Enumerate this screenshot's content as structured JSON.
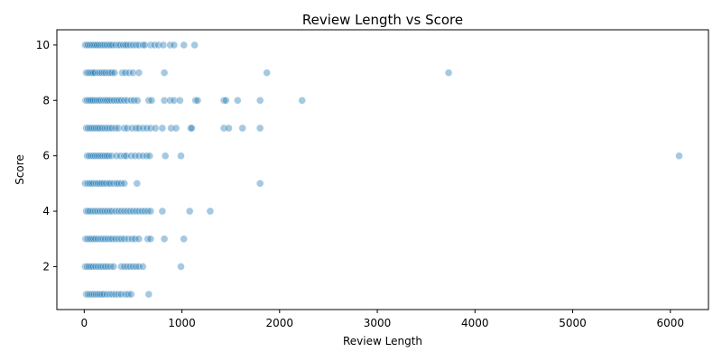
{
  "chart_data": {
    "type": "scatter",
    "title": "Review Length vs Score",
    "xlabel": "Review Length",
    "ylabel": "Score",
    "xlim": [
      -280,
      6390
    ],
    "ylim": [
      0.45,
      10.55
    ],
    "xticks": [
      0,
      1000,
      2000,
      3000,
      4000,
      5000,
      6000
    ],
    "yticks": [
      2,
      4,
      6,
      8,
      10
    ],
    "grid": false,
    "point_color": "#1f77b4",
    "point_alpha": 0.4,
    "series": [
      {
        "points": [
          [
            10,
            10
          ],
          [
            25,
            10
          ],
          [
            40,
            10
          ],
          [
            55,
            10
          ],
          [
            70,
            10
          ],
          [
            85,
            10
          ],
          [
            100,
            10
          ],
          [
            115,
            10
          ],
          [
            130,
            10
          ],
          [
            150,
            10
          ],
          [
            170,
            10
          ],
          [
            190,
            10
          ],
          [
            210,
            10
          ],
          [
            230,
            10
          ],
          [
            250,
            10
          ],
          [
            270,
            10
          ],
          [
            290,
            10
          ],
          [
            320,
            10
          ],
          [
            350,
            10
          ],
          [
            370,
            10
          ],
          [
            400,
            10
          ],
          [
            420,
            10
          ],
          [
            440,
            10
          ],
          [
            470,
            10
          ],
          [
            500,
            10
          ],
          [
            530,
            10
          ],
          [
            560,
            10
          ],
          [
            600,
            10
          ],
          [
            620,
            10
          ],
          [
            680,
            10
          ],
          [
            720,
            10
          ],
          [
            760,
            10
          ],
          [
            810,
            10
          ],
          [
            880,
            10
          ],
          [
            920,
            10
          ],
          [
            1020,
            10
          ],
          [
            1130,
            10
          ],
          [
            20,
            9
          ],
          [
            35,
            9
          ],
          [
            50,
            9
          ],
          [
            65,
            9
          ],
          [
            80,
            9
          ],
          [
            95,
            9
          ],
          [
            110,
            9
          ],
          [
            140,
            9
          ],
          [
            160,
            9
          ],
          [
            180,
            9
          ],
          [
            200,
            9
          ],
          [
            220,
            9
          ],
          [
            245,
            9
          ],
          [
            265,
            9
          ],
          [
            285,
            9
          ],
          [
            310,
            9
          ],
          [
            390,
            9
          ],
          [
            420,
            9
          ],
          [
            460,
            9
          ],
          [
            500,
            9
          ],
          [
            560,
            9
          ],
          [
            820,
            9
          ],
          [
            1870,
            9
          ],
          [
            3730,
            9
          ],
          [
            15,
            8
          ],
          [
            30,
            8
          ],
          [
            45,
            8
          ],
          [
            60,
            8
          ],
          [
            75,
            8
          ],
          [
            90,
            8
          ],
          [
            110,
            8
          ],
          [
            130,
            8
          ],
          [
            150,
            8
          ],
          [
            170,
            8
          ],
          [
            195,
            8
          ],
          [
            215,
            8
          ],
          [
            235,
            8
          ],
          [
            255,
            8
          ],
          [
            280,
            8
          ],
          [
            305,
            8
          ],
          [
            330,
            8
          ],
          [
            355,
            8
          ],
          [
            380,
            8
          ],
          [
            410,
            8
          ],
          [
            440,
            8
          ],
          [
            480,
            8
          ],
          [
            510,
            8
          ],
          [
            545,
            8
          ],
          [
            660,
            8
          ],
          [
            690,
            8
          ],
          [
            820,
            8
          ],
          [
            880,
            8
          ],
          [
            920,
            8
          ],
          [
            980,
            8
          ],
          [
            1140,
            8
          ],
          [
            1160,
            8
          ],
          [
            1430,
            8
          ],
          [
            1450,
            8
          ],
          [
            1570,
            8
          ],
          [
            1800,
            8
          ],
          [
            2230,
            8
          ],
          [
            20,
            7
          ],
          [
            40,
            7
          ],
          [
            60,
            7
          ],
          [
            80,
            7
          ],
          [
            100,
            7
          ],
          [
            120,
            7
          ],
          [
            140,
            7
          ],
          [
            160,
            7
          ],
          [
            185,
            7
          ],
          [
            210,
            7
          ],
          [
            235,
            7
          ],
          [
            260,
            7
          ],
          [
            285,
            7
          ],
          [
            320,
            7
          ],
          [
            350,
            7
          ],
          [
            410,
            7
          ],
          [
            440,
            7
          ],
          [
            490,
            7
          ],
          [
            530,
            7
          ],
          [
            560,
            7
          ],
          [
            600,
            7
          ],
          [
            640,
            7
          ],
          [
            680,
            7
          ],
          [
            730,
            7
          ],
          [
            800,
            7
          ],
          [
            890,
            7
          ],
          [
            940,
            7
          ],
          [
            1090,
            7
          ],
          [
            1100,
            7
          ],
          [
            1430,
            7
          ],
          [
            1480,
            7
          ],
          [
            1620,
            7
          ],
          [
            1800,
            7
          ],
          [
            30,
            6
          ],
          [
            50,
            6
          ],
          [
            70,
            6
          ],
          [
            90,
            6
          ],
          [
            110,
            6
          ],
          [
            130,
            6
          ],
          [
            150,
            6
          ],
          [
            170,
            6
          ],
          [
            190,
            6
          ],
          [
            210,
            6
          ],
          [
            230,
            6
          ],
          [
            250,
            6
          ],
          [
            280,
            6
          ],
          [
            330,
            6
          ],
          [
            370,
            6
          ],
          [
            410,
            6
          ],
          [
            430,
            6
          ],
          [
            480,
            6
          ],
          [
            520,
            6
          ],
          [
            560,
            6
          ],
          [
            600,
            6
          ],
          [
            640,
            6
          ],
          [
            670,
            6
          ],
          [
            830,
            6
          ],
          [
            990,
            6
          ],
          [
            6090,
            6
          ],
          [
            10,
            5
          ],
          [
            35,
            5
          ],
          [
            55,
            5
          ],
          [
            75,
            5
          ],
          [
            95,
            5
          ],
          [
            120,
            5
          ],
          [
            140,
            5
          ],
          [
            160,
            5
          ],
          [
            180,
            5
          ],
          [
            200,
            5
          ],
          [
            225,
            5
          ],
          [
            250,
            5
          ],
          [
            270,
            5
          ],
          [
            300,
            5
          ],
          [
            330,
            5
          ],
          [
            350,
            5
          ],
          [
            380,
            5
          ],
          [
            410,
            5
          ],
          [
            540,
            5
          ],
          [
            1800,
            5
          ],
          [
            20,
            4
          ],
          [
            40,
            4
          ],
          [
            60,
            4
          ],
          [
            85,
            4
          ],
          [
            110,
            4
          ],
          [
            135,
            4
          ],
          [
            160,
            4
          ],
          [
            185,
            4
          ],
          [
            210,
            4
          ],
          [
            235,
            4
          ],
          [
            260,
            4
          ],
          [
            285,
            4
          ],
          [
            320,
            4
          ],
          [
            350,
            4
          ],
          [
            380,
            4
          ],
          [
            410,
            4
          ],
          [
            440,
            4
          ],
          [
            470,
            4
          ],
          [
            500,
            4
          ],
          [
            530,
            4
          ],
          [
            560,
            4
          ],
          [
            590,
            4
          ],
          [
            620,
            4
          ],
          [
            650,
            4
          ],
          [
            680,
            4
          ],
          [
            800,
            4
          ],
          [
            1080,
            4
          ],
          [
            1290,
            4
          ],
          [
            15,
            3
          ],
          [
            35,
            3
          ],
          [
            55,
            3
          ],
          [
            75,
            3
          ],
          [
            95,
            3
          ],
          [
            115,
            3
          ],
          [
            140,
            3
          ],
          [
            165,
            3
          ],
          [
            190,
            3
          ],
          [
            215,
            3
          ],
          [
            240,
            3
          ],
          [
            265,
            3
          ],
          [
            290,
            3
          ],
          [
            320,
            3
          ],
          [
            350,
            3
          ],
          [
            380,
            3
          ],
          [
            410,
            3
          ],
          [
            450,
            3
          ],
          [
            490,
            3
          ],
          [
            520,
            3
          ],
          [
            560,
            3
          ],
          [
            650,
            3
          ],
          [
            680,
            3
          ],
          [
            820,
            3
          ],
          [
            1020,
            3
          ],
          [
            10,
            2
          ],
          [
            30,
            2
          ],
          [
            50,
            2
          ],
          [
            70,
            2
          ],
          [
            90,
            2
          ],
          [
            115,
            2
          ],
          [
            140,
            2
          ],
          [
            165,
            2
          ],
          [
            190,
            2
          ],
          [
            215,
            2
          ],
          [
            240,
            2
          ],
          [
            270,
            2
          ],
          [
            300,
            2
          ],
          [
            380,
            2
          ],
          [
            410,
            2
          ],
          [
            440,
            2
          ],
          [
            470,
            2
          ],
          [
            500,
            2
          ],
          [
            530,
            2
          ],
          [
            560,
            2
          ],
          [
            600,
            2
          ],
          [
            990,
            2
          ],
          [
            20,
            1
          ],
          [
            40,
            1
          ],
          [
            60,
            1
          ],
          [
            80,
            1
          ],
          [
            100,
            1
          ],
          [
            120,
            1
          ],
          [
            140,
            1
          ],
          [
            160,
            1
          ],
          [
            180,
            1
          ],
          [
            200,
            1
          ],
          [
            230,
            1
          ],
          [
            260,
            1
          ],
          [
            290,
            1
          ],
          [
            320,
            1
          ],
          [
            350,
            1
          ],
          [
            380,
            1
          ],
          [
            420,
            1
          ],
          [
            450,
            1
          ],
          [
            480,
            1
          ],
          [
            660,
            1
          ]
        ]
      }
    ]
  }
}
